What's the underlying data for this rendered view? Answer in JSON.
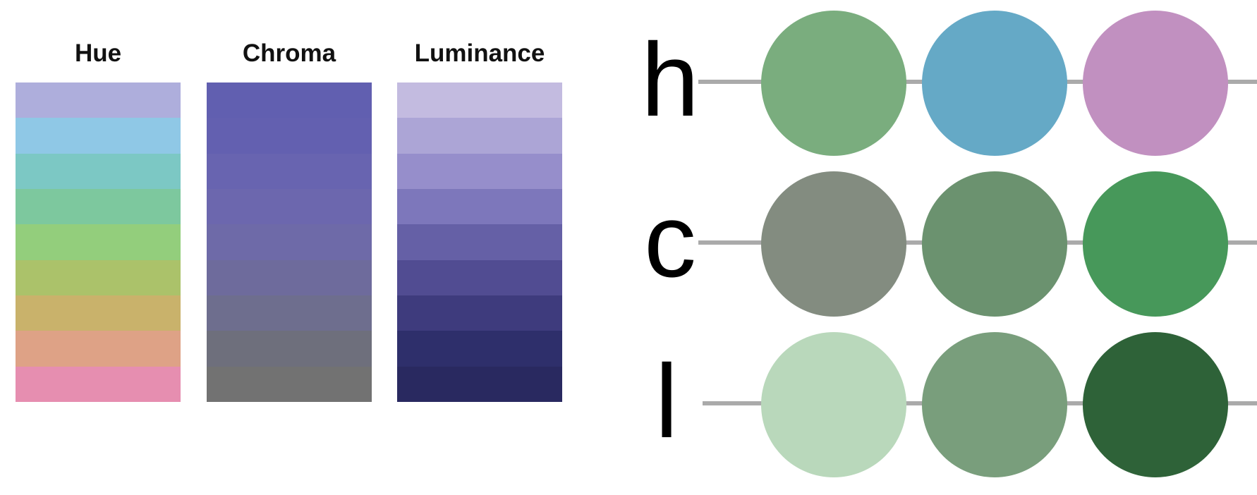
{
  "palettes": [
    {
      "title": "Hue",
      "colors": [
        "#aeaedc",
        "#8fc8e6",
        "#7cc8c4",
        "#7dc89e",
        "#93ce7c",
        "#abc26a",
        "#c9b26b",
        "#dea286",
        "#e68eb0"
      ]
    },
    {
      "title": "Chroma",
      "colors": [
        "#615fb0",
        "#6360b0",
        "#6864b0",
        "#6c67ae",
        "#6e6aa8",
        "#6e6b9c",
        "#6e6e8e",
        "#6e6f7c",
        "#727272"
      ]
    },
    {
      "title": "Luminance",
      "colors": [
        "#c3bbe0",
        "#aca5d6",
        "#968ecb",
        "#7d77bb",
        "#6560a6",
        "#514c92",
        "#3e3b7d",
        "#2e2f6b",
        "#292960"
      ]
    }
  ],
  "rows": [
    {
      "letter": "h",
      "colors": [
        "#7aad7e",
        "#65a9c6",
        "#c190c0"
      ]
    },
    {
      "letter": "c",
      "colors": [
        "#838c80",
        "#6b926f",
        "#47985a"
      ]
    },
    {
      "letter": "l",
      "colors": [
        "#b9d8bb",
        "#799e7c",
        "#2e6238"
      ]
    }
  ]
}
